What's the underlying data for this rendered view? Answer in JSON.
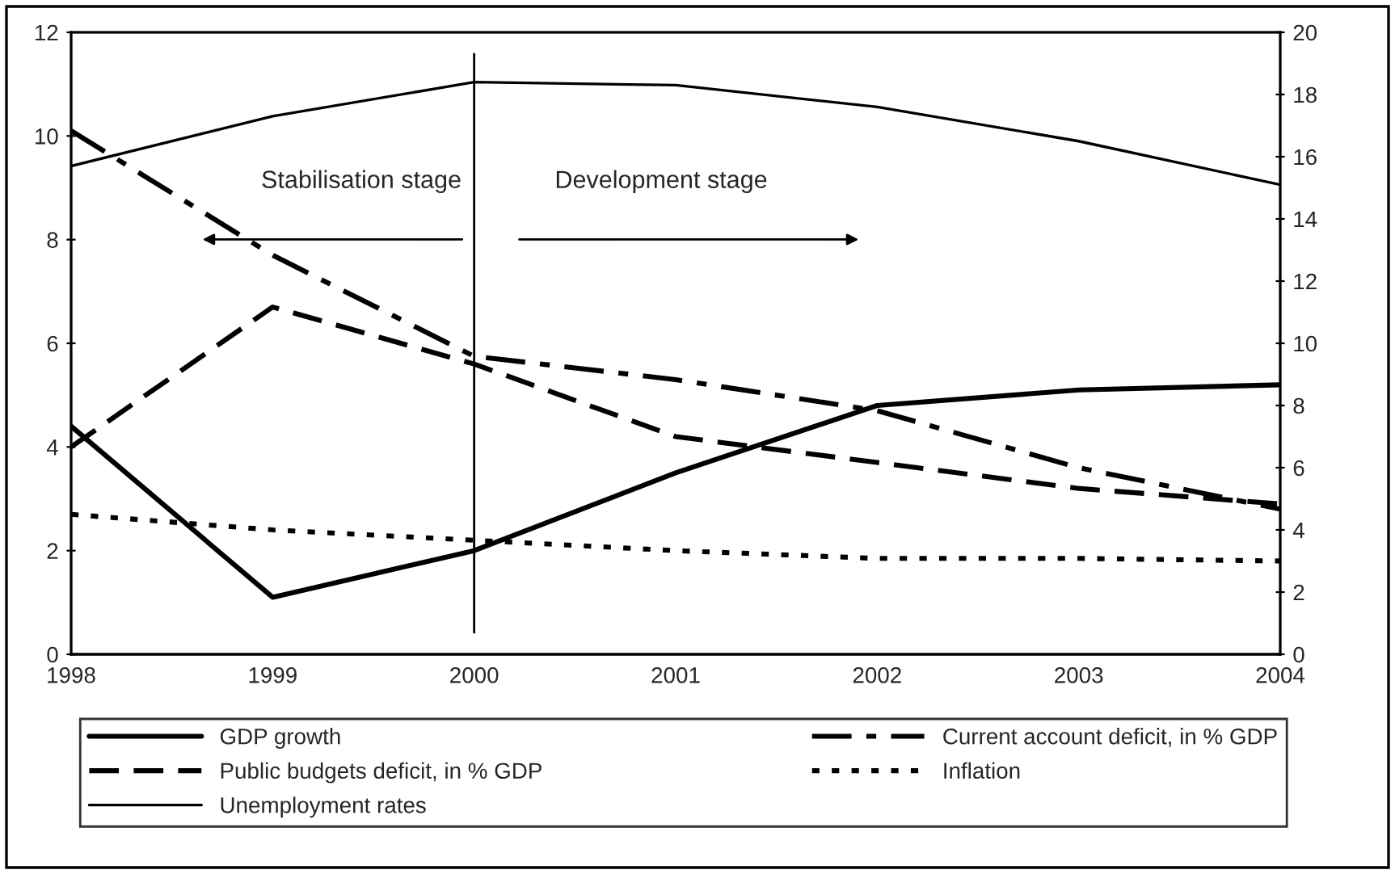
{
  "chart_data": {
    "type": "line",
    "x": [
      1998,
      1999,
      2000,
      2001,
      2002,
      2003,
      2004
    ],
    "series": [
      {
        "name": "GDP growth",
        "color": "#000000",
        "line_style": "solid",
        "values": [
          4.4,
          1.1,
          2.0,
          3.5,
          4.8,
          5.1,
          5.2
        ]
      },
      {
        "name": "Current account deficit, in % GDP",
        "color": "#000000",
        "line_style": "dashdot",
        "values": [
          10.1,
          7.7,
          5.75,
          5.3,
          4.7,
          3.6,
          2.8
        ]
      },
      {
        "name": "Public budgets deficit, in % GDP",
        "color": "#000000",
        "line_style": "dashed",
        "values": [
          4.0,
          6.7,
          5.6,
          4.2,
          3.7,
          3.2,
          2.9
        ]
      },
      {
        "name": "Inflation",
        "color": "#000000",
        "line_style": "dotted",
        "values": [
          2.7,
          2.4,
          2.2,
          2.0,
          1.85,
          1.85,
          1.8
        ]
      },
      {
        "name": "Unemployment rates",
        "color": "#000000",
        "line_style": "solid",
        "axis": "y2",
        "values": [
          15.7,
          17.3,
          18.4,
          18.3,
          17.6,
          16.5,
          15.1
        ]
      }
    ],
    "xlim": [
      1998,
      2004
    ],
    "xticks": [
      1998,
      1999,
      2000,
      2001,
      2002,
      2003,
      2004
    ],
    "ylim": [
      0,
      12
    ],
    "yticks": [
      0,
      2,
      4,
      6,
      8,
      10,
      12
    ],
    "y2lim": [
      0,
      20
    ],
    "y2ticks": [
      0,
      2,
      4,
      6,
      8,
      10,
      12,
      14,
      16,
      18,
      20
    ],
    "ref_lines": [
      {
        "axis": "x",
        "value": 2000,
        "color": "#000000",
        "line_style": "solid"
      }
    ],
    "annotations": [
      "Stabilisation stage",
      "Development stage"
    ],
    "grid": false,
    "legend": "bottom",
    "marker": "none"
  }
}
